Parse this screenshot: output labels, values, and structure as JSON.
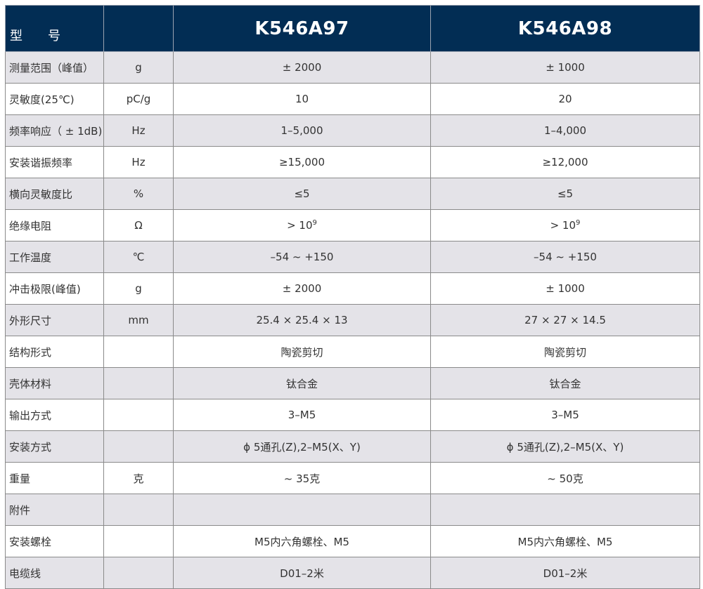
{
  "header": {
    "label": "型　　号",
    "unit": "",
    "models": [
      "K546A97",
      "K546A98"
    ]
  },
  "colors": {
    "header_bg": "#022d54",
    "row_gray": "#e4e3e8",
    "row_white": "#ffffff"
  },
  "rows": [
    {
      "name": "测量范围（峰值）",
      "unit": "g",
      "values": [
        "± 2000",
        "± 1000"
      ]
    },
    {
      "name": "灵敏度(25℃)",
      "unit": "pC/g",
      "values": [
        "10",
        "20"
      ]
    },
    {
      "name": "频率响应（ ± 1dB)",
      "unit": "Hz",
      "values": [
        "1–5,000",
        "1–4,000"
      ]
    },
    {
      "name": "安装谐振频率",
      "unit": "Hz",
      "values": [
        "≥15,000",
        "≥12,000"
      ]
    },
    {
      "name": "横向灵敏度比",
      "unit": "%",
      "values": [
        "≤5",
        "≤5"
      ]
    },
    {
      "name": "绝缘电阻",
      "unit": "Ω",
      "values": [
        "> 10",
        "> 10"
      ],
      "sup": [
        "9",
        "9"
      ]
    },
    {
      "name": "工作温度",
      "unit": "℃",
      "values": [
        "–54 ~ +150",
        "–54 ~ +150"
      ]
    },
    {
      "name": "冲击极限(峰值)",
      "unit": "g",
      "values": [
        "± 2000",
        "± 1000"
      ]
    },
    {
      "name": "外形尺寸",
      "unit": "mm",
      "values": [
        "25.4 × 25.4 × 13",
        "27 × 27 × 14.5"
      ]
    },
    {
      "name": "结构形式",
      "unit": "",
      "values": [
        "陶瓷剪切",
        "陶瓷剪切"
      ]
    },
    {
      "name": "壳体材料",
      "unit": "",
      "values": [
        "钛合金",
        "钛合金"
      ]
    },
    {
      "name": "输出方式",
      "unit": "",
      "values": [
        "3–M5",
        "3–M5"
      ]
    },
    {
      "name": "安装方式",
      "unit": "",
      "values": [
        "ϕ 5通孔(Z),2–M5(X、Y)",
        "ϕ 5通孔(Z),2–M5(X、Y)"
      ]
    },
    {
      "name": "重量",
      "unit": "克",
      "values": [
        "~ 35克",
        "~ 50克"
      ]
    },
    {
      "name": "附件",
      "unit": "",
      "values": [
        "",
        ""
      ]
    },
    {
      "name": "安装螺栓",
      "unit": "",
      "values": [
        "M5内六角螺栓、M5",
        "M5内六角螺栓、M5"
      ]
    },
    {
      "name": "电缆线",
      "unit": "",
      "values": [
        "D01–2米",
        "D01–2米"
      ]
    }
  ]
}
